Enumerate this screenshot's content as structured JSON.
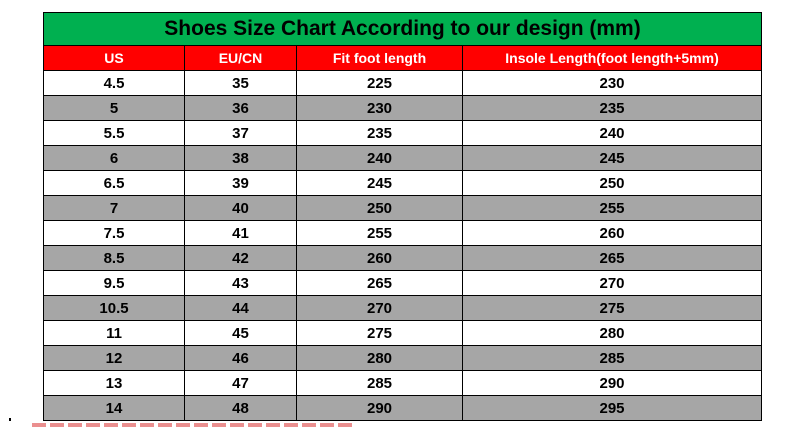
{
  "title": "Shoes Size Chart According to our design (mm)",
  "headers": [
    "US",
    "EU/CN",
    "Fit foot length",
    "Insole Length(foot length+5mm)"
  ],
  "rows": [
    [
      "4.5",
      "35",
      "225",
      "230"
    ],
    [
      "5",
      "36",
      "230",
      "235"
    ],
    [
      "5.5",
      "37",
      "235",
      "240"
    ],
    [
      "6",
      "38",
      "240",
      "245"
    ],
    [
      "6.5",
      "39",
      "245",
      "250"
    ],
    [
      "7",
      "40",
      "250",
      "255"
    ],
    [
      "7.5",
      "41",
      "255",
      "260"
    ],
    [
      "8.5",
      "42",
      "260",
      "265"
    ],
    [
      "9.5",
      "43",
      "265",
      "270"
    ],
    [
      "10.5",
      "44",
      "270",
      "275"
    ],
    [
      "11",
      "45",
      "275",
      "280"
    ],
    [
      "12",
      "46",
      "280",
      "285"
    ],
    [
      "13",
      "47",
      "285",
      "290"
    ],
    [
      "14",
      "48",
      "290",
      "295"
    ]
  ],
  "colors": {
    "title_bg": "#00b050",
    "header_bg": "#ff0000",
    "header_text": "#ffffff",
    "alt_row_bg": "#a6a6a6"
  }
}
